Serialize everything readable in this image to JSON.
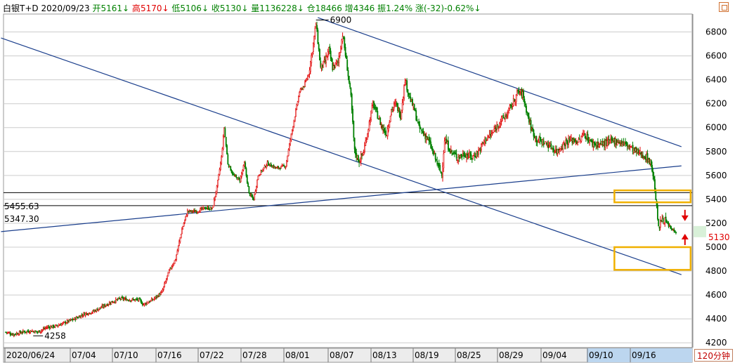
{
  "header": {
    "name": "白银T+D",
    "date": "2020/09/23",
    "open_label": "开",
    "open": "5161",
    "high_label": "高",
    "high": "5170",
    "low_label": "低",
    "low": "5106",
    "close_label": "收",
    "close": "5130",
    "volume_label": "量",
    "volume": "1136228",
    "oi_label": "仓",
    "oi": "18466",
    "inc_label": "增",
    "inc": "4346",
    "amp_label": "振",
    "amp": "1.24%",
    "chg_label": "涨",
    "chg": "(-32)-0.62%"
  },
  "period_label": "120分钟",
  "last_price": "5130",
  "colors": {
    "up": "#e00000",
    "down": "#008000",
    "trend": "#1a3e8c",
    "box": "#f0b000",
    "grid": "#cccccc"
  },
  "chart_data": {
    "type": "candlestick",
    "y_ticks": [
      4200,
      4400,
      4600,
      4800,
      5000,
      5200,
      5400,
      5600,
      5800,
      6000,
      6200,
      6400,
      6600,
      6800
    ],
    "ylim": [
      4160,
      6950
    ],
    "x_ticks": [
      "2020/06/24",
      "07/04",
      "07/10",
      "07/16",
      "07/22",
      "07/28",
      "08/01",
      "08/07",
      "08/13",
      "08/19",
      "08/25",
      "08/29",
      "09/04",
      "09/10",
      "09/16"
    ],
    "close_path": [
      [
        0,
        4290
      ],
      [
        8,
        4270
      ],
      [
        18,
        4290
      ],
      [
        28,
        4300
      ],
      [
        35,
        4290
      ],
      [
        45,
        4330
      ],
      [
        55,
        4340
      ],
      [
        65,
        4370
      ],
      [
        75,
        4400
      ],
      [
        85,
        4440
      ],
      [
        95,
        4460
      ],
      [
        105,
        4500
      ],
      [
        115,
        4540
      ],
      [
        125,
        4570
      ],
      [
        135,
        4560
      ],
      [
        145,
        4560
      ],
      [
        150,
        4520
      ],
      [
        160,
        4560
      ],
      [
        170,
        4620
      ],
      [
        178,
        4800
      ],
      [
        185,
        4900
      ],
      [
        192,
        5150
      ],
      [
        198,
        5300
      ],
      [
        208,
        5300
      ],
      [
        218,
        5330
      ],
      [
        225,
        5320
      ],
      [
        230,
        5500
      ],
      [
        235,
        5750
      ],
      [
        238,
        6000
      ],
      [
        242,
        5700
      ],
      [
        248,
        5600
      ],
      [
        255,
        5560
      ],
      [
        260,
        5700
      ],
      [
        265,
        5450
      ],
      [
        270,
        5400
      ],
      [
        275,
        5600
      ],
      [
        285,
        5700
      ],
      [
        295,
        5660
      ],
      [
        305,
        5680
      ],
      [
        310,
        5900
      ],
      [
        315,
        6100
      ],
      [
        320,
        6300
      ],
      [
        325,
        6350
      ],
      [
        330,
        6450
      ],
      [
        335,
        6700
      ],
      [
        338,
        6870
      ],
      [
        343,
        6500
      ],
      [
        348,
        6550
      ],
      [
        352,
        6650
      ],
      [
        356,
        6500
      ],
      [
        362,
        6550
      ],
      [
        367,
        6780
      ],
      [
        372,
        6500
      ],
      [
        376,
        6250
      ],
      [
        380,
        5800
      ],
      [
        385,
        5720
      ],
      [
        390,
        5800
      ],
      [
        395,
        6000
      ],
      [
        400,
        6200
      ],
      [
        405,
        6100
      ],
      [
        410,
        6000
      ],
      [
        415,
        5950
      ],
      [
        420,
        6150
      ],
      [
        425,
        6200
      ],
      [
        430,
        6100
      ],
      [
        435,
        6400
      ],
      [
        440,
        6250
      ],
      [
        445,
        6150
      ],
      [
        450,
        6000
      ],
      [
        455,
        5950
      ],
      [
        460,
        5900
      ],
      [
        465,
        5800
      ],
      [
        470,
        5700
      ],
      [
        475,
        5600
      ],
      [
        478,
        5900
      ],
      [
        485,
        5800
      ],
      [
        492,
        5750
      ],
      [
        500,
        5780
      ],
      [
        508,
        5750
      ],
      [
        515,
        5800
      ],
      [
        522,
        5900
      ],
      [
        530,
        5950
      ],
      [
        538,
        6050
      ],
      [
        545,
        6100
      ],
      [
        552,
        6200
      ],
      [
        558,
        6300
      ],
      [
        563,
        6280
      ],
      [
        568,
        6120
      ],
      [
        572,
        6000
      ],
      [
        578,
        5900
      ],
      [
        585,
        5880
      ],
      [
        592,
        5850
      ],
      [
        600,
        5800
      ],
      [
        610,
        5880
      ],
      [
        618,
        5900
      ],
      [
        624,
        5880
      ],
      [
        630,
        5950
      ],
      [
        638,
        5870
      ],
      [
        646,
        5860
      ],
      [
        654,
        5870
      ],
      [
        662,
        5890
      ],
      [
        670,
        5880
      ],
      [
        678,
        5850
      ],
      [
        686,
        5800
      ],
      [
        692,
        5780
      ],
      [
        698,
        5750
      ],
      [
        703,
        5700
      ],
      [
        707,
        5500
      ],
      [
        711,
        5150
      ],
      [
        715,
        5250
      ],
      [
        720,
        5200
      ],
      [
        725,
        5150
      ],
      [
        730,
        5130
      ]
    ],
    "annotations": {
      "high": "6900",
      "low": "4258"
    },
    "horizontal_levels": [
      {
        "label": "5455.63",
        "value": 5455.63
      },
      {
        "label": "5347.30",
        "value": 5347.3
      }
    ],
    "trend_lines": [
      {
        "from": [
          -5,
          6750
        ],
        "to": [
          736,
          4770
        ]
      },
      {
        "from": [
          -5,
          5130
        ],
        "to": [
          736,
          5680
        ]
      },
      {
        "from": [
          340,
          6920
        ],
        "to": [
          736,
          5840
        ]
      }
    ],
    "highlight_boxes": [
      {
        "from": [
          663,
          5375
        ],
        "to": [
          746,
          5475
        ]
      },
      {
        "from": [
          663,
          4810
        ],
        "to": [
          746,
          5000
        ]
      }
    ],
    "markers": [
      {
        "type": "arrow-down",
        "price": 5230
      },
      {
        "type": "arrow-up",
        "price": 5100
      }
    ]
  }
}
